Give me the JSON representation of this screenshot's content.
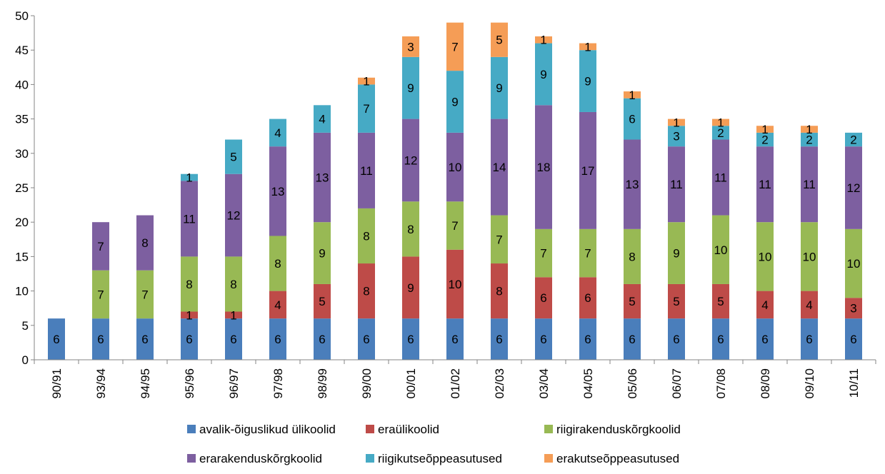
{
  "chart_data": {
    "type": "bar",
    "stacked": true,
    "categories": [
      "90/91",
      "93/94",
      "94/95",
      "95/96",
      "96/97",
      "97/98",
      "98/99",
      "99/00",
      "00/01",
      "01/02",
      "02/03",
      "03/04",
      "04/05",
      "05/06",
      "06/07",
      "07/08",
      "08/09",
      "09/10",
      "10/11"
    ],
    "ylim": [
      0,
      50
    ],
    "yticks": [
      0,
      5,
      10,
      15,
      20,
      25,
      30,
      35,
      40,
      45,
      50
    ],
    "grid": false,
    "legend_position": "bottom",
    "series": [
      {
        "name": "avalik-õiguslikud ülikoolid",
        "color": "#4a7ebb",
        "values": [
          6,
          6,
          6,
          6,
          6,
          6,
          6,
          6,
          6,
          6,
          6,
          6,
          6,
          6,
          6,
          6,
          6,
          6,
          6
        ]
      },
      {
        "name": "eraülikoolid",
        "color": "#be4b48",
        "values": [
          0,
          0,
          0,
          1,
          1,
          4,
          5,
          8,
          9,
          10,
          8,
          6,
          6,
          5,
          5,
          5,
          4,
          4,
          3
        ]
      },
      {
        "name": "riigirakenduskõrgkoolid",
        "color": "#98b954",
        "values": [
          0,
          7,
          7,
          8,
          8,
          8,
          9,
          8,
          8,
          7,
          7,
          7,
          7,
          8,
          9,
          10,
          10,
          10,
          10
        ]
      },
      {
        "name": "erarakenduskõrgkoolid",
        "color": "#7d5fa0",
        "values": [
          0,
          7,
          8,
          11,
          12,
          13,
          13,
          11,
          12,
          10,
          14,
          18,
          17,
          13,
          11,
          11,
          11,
          11,
          12
        ]
      },
      {
        "name": "riigikutseõppeasutused",
        "color": "#46aac5",
        "values": [
          0,
          0,
          0,
          1,
          5,
          4,
          4,
          7,
          9,
          9,
          9,
          9,
          9,
          6,
          3,
          2,
          2,
          2,
          2
        ]
      },
      {
        "name": "erakutseõppeasutused",
        "color": "#f59d56",
        "values": [
          0,
          0,
          0,
          0,
          0,
          0,
          0,
          1,
          3,
          7,
          5,
          1,
          1,
          1,
          1,
          1,
          1,
          1,
          0
        ]
      }
    ]
  }
}
